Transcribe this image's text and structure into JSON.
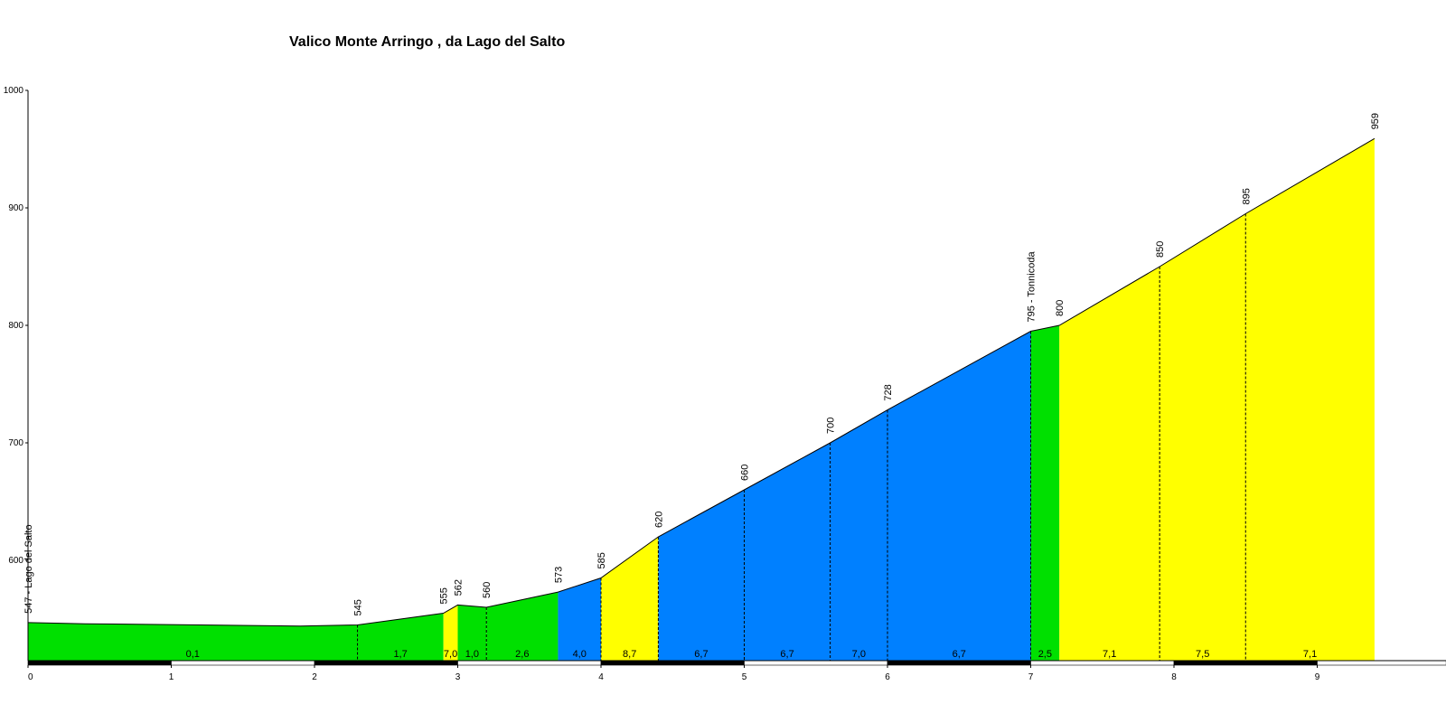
{
  "chart_data": {
    "type": "area",
    "title": "Valico Monte Arringo , da Lago del Salto",
    "xlabel": "",
    "ylabel": "",
    "xlim": [
      0,
      9.9
    ],
    "ylim": [
      518,
      1000
    ],
    "x_ticks": [
      "0",
      "1",
      "2",
      "3",
      "4",
      "5",
      "6",
      "7",
      "8",
      "9"
    ],
    "y_ticks": [
      "600",
      "700",
      "800",
      "900",
      "1000"
    ],
    "grid": false,
    "legend": "none",
    "colors": {
      "green": "#00e000",
      "yellow": "#ffff00",
      "blue": "#0080ff",
      "outline": "#000000"
    },
    "profile": [
      {
        "x": 0.0,
        "y": 547
      },
      {
        "x": 0.4,
        "y": 546
      },
      {
        "x": 1.2,
        "y": 545
      },
      {
        "x": 1.9,
        "y": 544
      },
      {
        "x": 2.3,
        "y": 545
      },
      {
        "x": 2.9,
        "y": 555
      },
      {
        "x": 3.0,
        "y": 562
      },
      {
        "x": 3.2,
        "y": 560
      },
      {
        "x": 3.7,
        "y": 573
      },
      {
        "x": 4.0,
        "y": 585
      },
      {
        "x": 4.4,
        "y": 620
      },
      {
        "x": 5.0,
        "y": 660
      },
      {
        "x": 5.6,
        "y": 700
      },
      {
        "x": 6.0,
        "y": 728
      },
      {
        "x": 7.0,
        "y": 795
      },
      {
        "x": 7.2,
        "y": 800
      },
      {
        "x": 7.9,
        "y": 850
      },
      {
        "x": 8.5,
        "y": 895
      },
      {
        "x": 9.4,
        "y": 959
      }
    ],
    "segments": [
      {
        "x0": 0.0,
        "x1": 2.3,
        "gradient": "0,1",
        "color": "green"
      },
      {
        "x0": 2.3,
        "x1": 2.9,
        "gradient": "1,7",
        "color": "green"
      },
      {
        "x0": 2.9,
        "x1": 3.0,
        "gradient": "7,0",
        "color": "yellow"
      },
      {
        "x0": 3.0,
        "x1": 3.2,
        "gradient": "1,0",
        "color": "green"
      },
      {
        "x0": 3.2,
        "x1": 3.7,
        "gradient": "2,6",
        "color": "green"
      },
      {
        "x0": 3.7,
        "x1": 4.0,
        "gradient": "4,0",
        "color": "blue"
      },
      {
        "x0": 4.0,
        "x1": 4.4,
        "gradient": "8,7",
        "color": "yellow"
      },
      {
        "x0": 4.4,
        "x1": 5.0,
        "gradient": "6,7",
        "color": "blue"
      },
      {
        "x0": 5.0,
        "x1": 5.6,
        "gradient": "6,7",
        "color": "blue"
      },
      {
        "x0": 5.6,
        "x1": 6.0,
        "gradient": "7,0",
        "color": "blue"
      },
      {
        "x0": 6.0,
        "x1": 7.0,
        "gradient": "6,7",
        "color": "blue"
      },
      {
        "x0": 7.0,
        "x1": 7.2,
        "gradient": "2,5",
        "color": "green"
      },
      {
        "x0": 7.2,
        "x1": 7.9,
        "gradient": "7,1",
        "color": "yellow"
      },
      {
        "x0": 7.9,
        "x1": 8.5,
        "gradient": "7,5",
        "color": "yellow"
      },
      {
        "x0": 8.5,
        "x1": 9.4,
        "gradient": "7,1",
        "color": "yellow"
      }
    ],
    "point_labels": [
      {
        "x": 0.0,
        "y": 547,
        "text": "547 - Lago del Salto",
        "dashed": false
      },
      {
        "x": 2.3,
        "y": 545,
        "text": "545",
        "dashed": true
      },
      {
        "x": 2.9,
        "y": 555,
        "text": "555",
        "dashed": false
      },
      {
        "x": 3.0,
        "y": 562,
        "text": "562",
        "dashed": false
      },
      {
        "x": 3.2,
        "y": 560,
        "text": "560",
        "dashed": true
      },
      {
        "x": 3.7,
        "y": 573,
        "text": "573",
        "dashed": false
      },
      {
        "x": 4.0,
        "y": 585,
        "text": "585",
        "dashed": true
      },
      {
        "x": 4.4,
        "y": 620,
        "text": "620",
        "dashed": true
      },
      {
        "x": 5.0,
        "y": 660,
        "text": "660",
        "dashed": true
      },
      {
        "x": 5.6,
        "y": 700,
        "text": "700",
        "dashed": true
      },
      {
        "x": 6.0,
        "y": 728,
        "text": "728",
        "dashed": true
      },
      {
        "x": 7.0,
        "y": 795,
        "text": "795 - Tonnicoda",
        "dashed": true
      },
      {
        "x": 7.2,
        "y": 800,
        "text": "800",
        "dashed": false
      },
      {
        "x": 7.9,
        "y": 850,
        "text": "850",
        "dashed": true
      },
      {
        "x": 8.5,
        "y": 895,
        "text": "895",
        "dashed": true
      },
      {
        "x": 9.4,
        "y": 959,
        "text": "959",
        "dashed": false
      }
    ]
  }
}
